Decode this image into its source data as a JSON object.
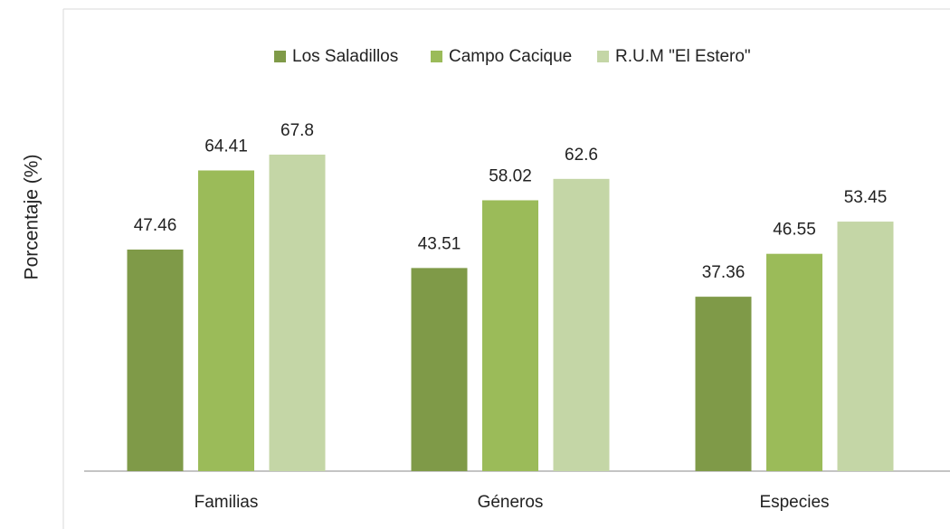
{
  "chart_data": {
    "type": "bar",
    "categories": [
      "Familias",
      "Géneros",
      "Especies"
    ],
    "series": [
      {
        "name": "Los Saladillos",
        "color": "#7f9a48",
        "values": [
          47.46,
          43.51,
          37.36
        ]
      },
      {
        "name": "Campo Cacique",
        "color": "#9bbb59",
        "values": [
          64.41,
          58.02,
          46.55
        ]
      },
      {
        "name": "R.U.M \"El Estero\"",
        "color": "#c4d6a6",
        "values": [
          67.8,
          62.6,
          53.45
        ]
      }
    ],
    "ylabel": "Porcentaje (%)",
    "ylim": [
      0,
      80
    ],
    "legend": "top"
  }
}
